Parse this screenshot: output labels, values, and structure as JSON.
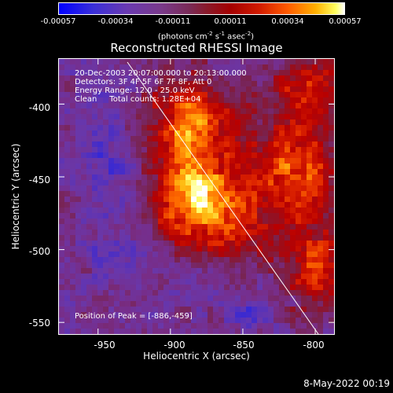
{
  "colorbar": {
    "ticks": [
      "-0.00057",
      "-0.00034",
      "-0.00011",
      "0.00011",
      "0.00034",
      "0.00057"
    ],
    "unit": {
      "prefix": "(photons cm",
      "exp1": "-2",
      "mid1": " s",
      "exp2": "-1",
      "mid2": " asec",
      "exp3": "-2",
      "suffix": ")"
    },
    "colors": [
      "#0000ff",
      "#6a3ab0",
      "#7a2a55",
      "#a40000",
      "#ff5a00",
      "#ffff60",
      "#ffffff"
    ]
  },
  "title": "Reconstructed RHESSI Image",
  "info": {
    "time_range": "20-Dec-2003 20:07:00.000 to 20:13:00.000",
    "detectors": "Detectors: 3F 4F 5F 6F 7F 8F, Att 0",
    "energy_range": "Energy Range: 12.0 - 25.0 keV",
    "clean_label": "Clean",
    "total_counts": "Total counts: 1.28E+04"
  },
  "peak_text": "Position of Peak = [-886,-459]",
  "axes": {
    "xlabel": "Heliocentric X (arcsec)",
    "ylabel": "Heliocentric Y (arcsec)",
    "xticks": [
      "-950",
      "-900",
      "-850",
      "-800"
    ],
    "yticks": [
      "-400",
      "-450",
      "-500",
      "-550"
    ],
    "xlim": [
      -977,
      -787
    ],
    "ylim": [
      -558,
      -369
    ]
  },
  "peak_position": [
    -886,
    -459
  ],
  "timestamp": "8-May-2022 00:19"
}
